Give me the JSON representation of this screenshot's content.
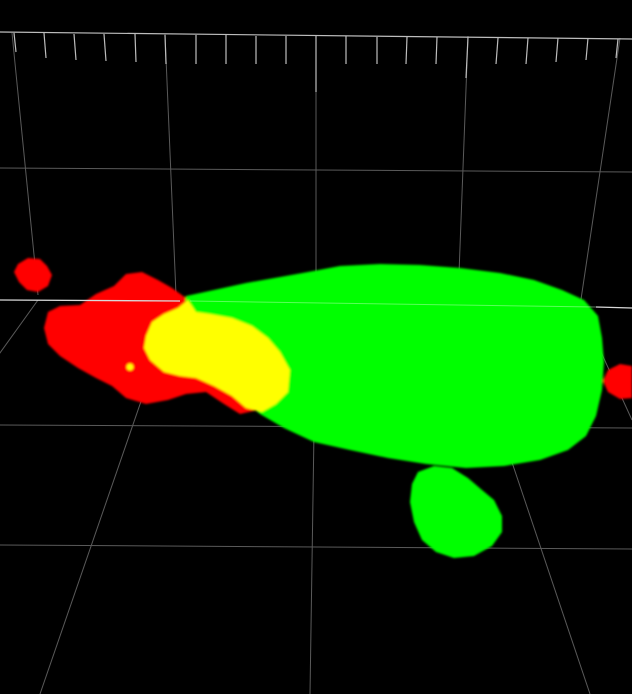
{
  "viewer": {
    "background_color": "#000000",
    "grid_color": "#5a5a5a",
    "bright_grid_color": "#bdbdbd",
    "channels": [
      {
        "name": "red-channel",
        "color": "#ff0000"
      },
      {
        "name": "green-channel",
        "color": "#00ff00"
      },
      {
        "name": "overlap-channel",
        "color": "#ffff00"
      }
    ]
  }
}
